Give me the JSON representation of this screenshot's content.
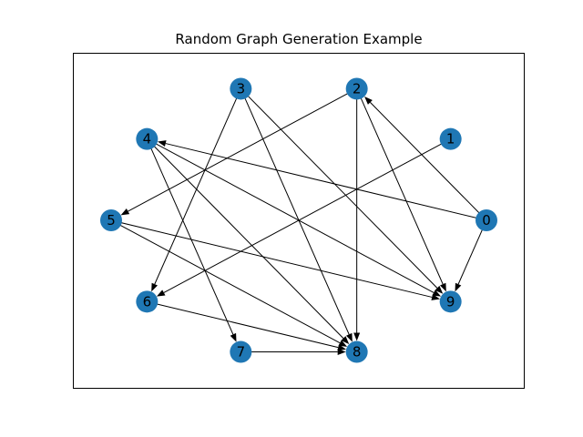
{
  "title": "Random Graph Generation Example",
  "node_color": "#1f77b4",
  "edge_color": "#000000",
  "frame_color": "#000000",
  "nodes": [
    {
      "id": "0"
    },
    {
      "id": "1"
    },
    {
      "id": "2"
    },
    {
      "id": "3"
    },
    {
      "id": "4"
    },
    {
      "id": "5"
    },
    {
      "id": "6"
    },
    {
      "id": "7"
    },
    {
      "id": "8"
    },
    {
      "id": "9"
    }
  ],
  "edges": [
    {
      "source": "0",
      "target": "2"
    },
    {
      "source": "0",
      "target": "4"
    },
    {
      "source": "0",
      "target": "9"
    },
    {
      "source": "1",
      "target": "6"
    },
    {
      "source": "2",
      "target": "5"
    },
    {
      "source": "2",
      "target": "8"
    },
    {
      "source": "2",
      "target": "9"
    },
    {
      "source": "3",
      "target": "6"
    },
    {
      "source": "3",
      "target": "8"
    },
    {
      "source": "3",
      "target": "9"
    },
    {
      "source": "4",
      "target": "7"
    },
    {
      "source": "4",
      "target": "8"
    },
    {
      "source": "4",
      "target": "9"
    },
    {
      "source": "5",
      "target": "8"
    },
    {
      "source": "5",
      "target": "9"
    },
    {
      "source": "6",
      "target": "8"
    },
    {
      "source": "7",
      "target": "8"
    }
  ]
}
